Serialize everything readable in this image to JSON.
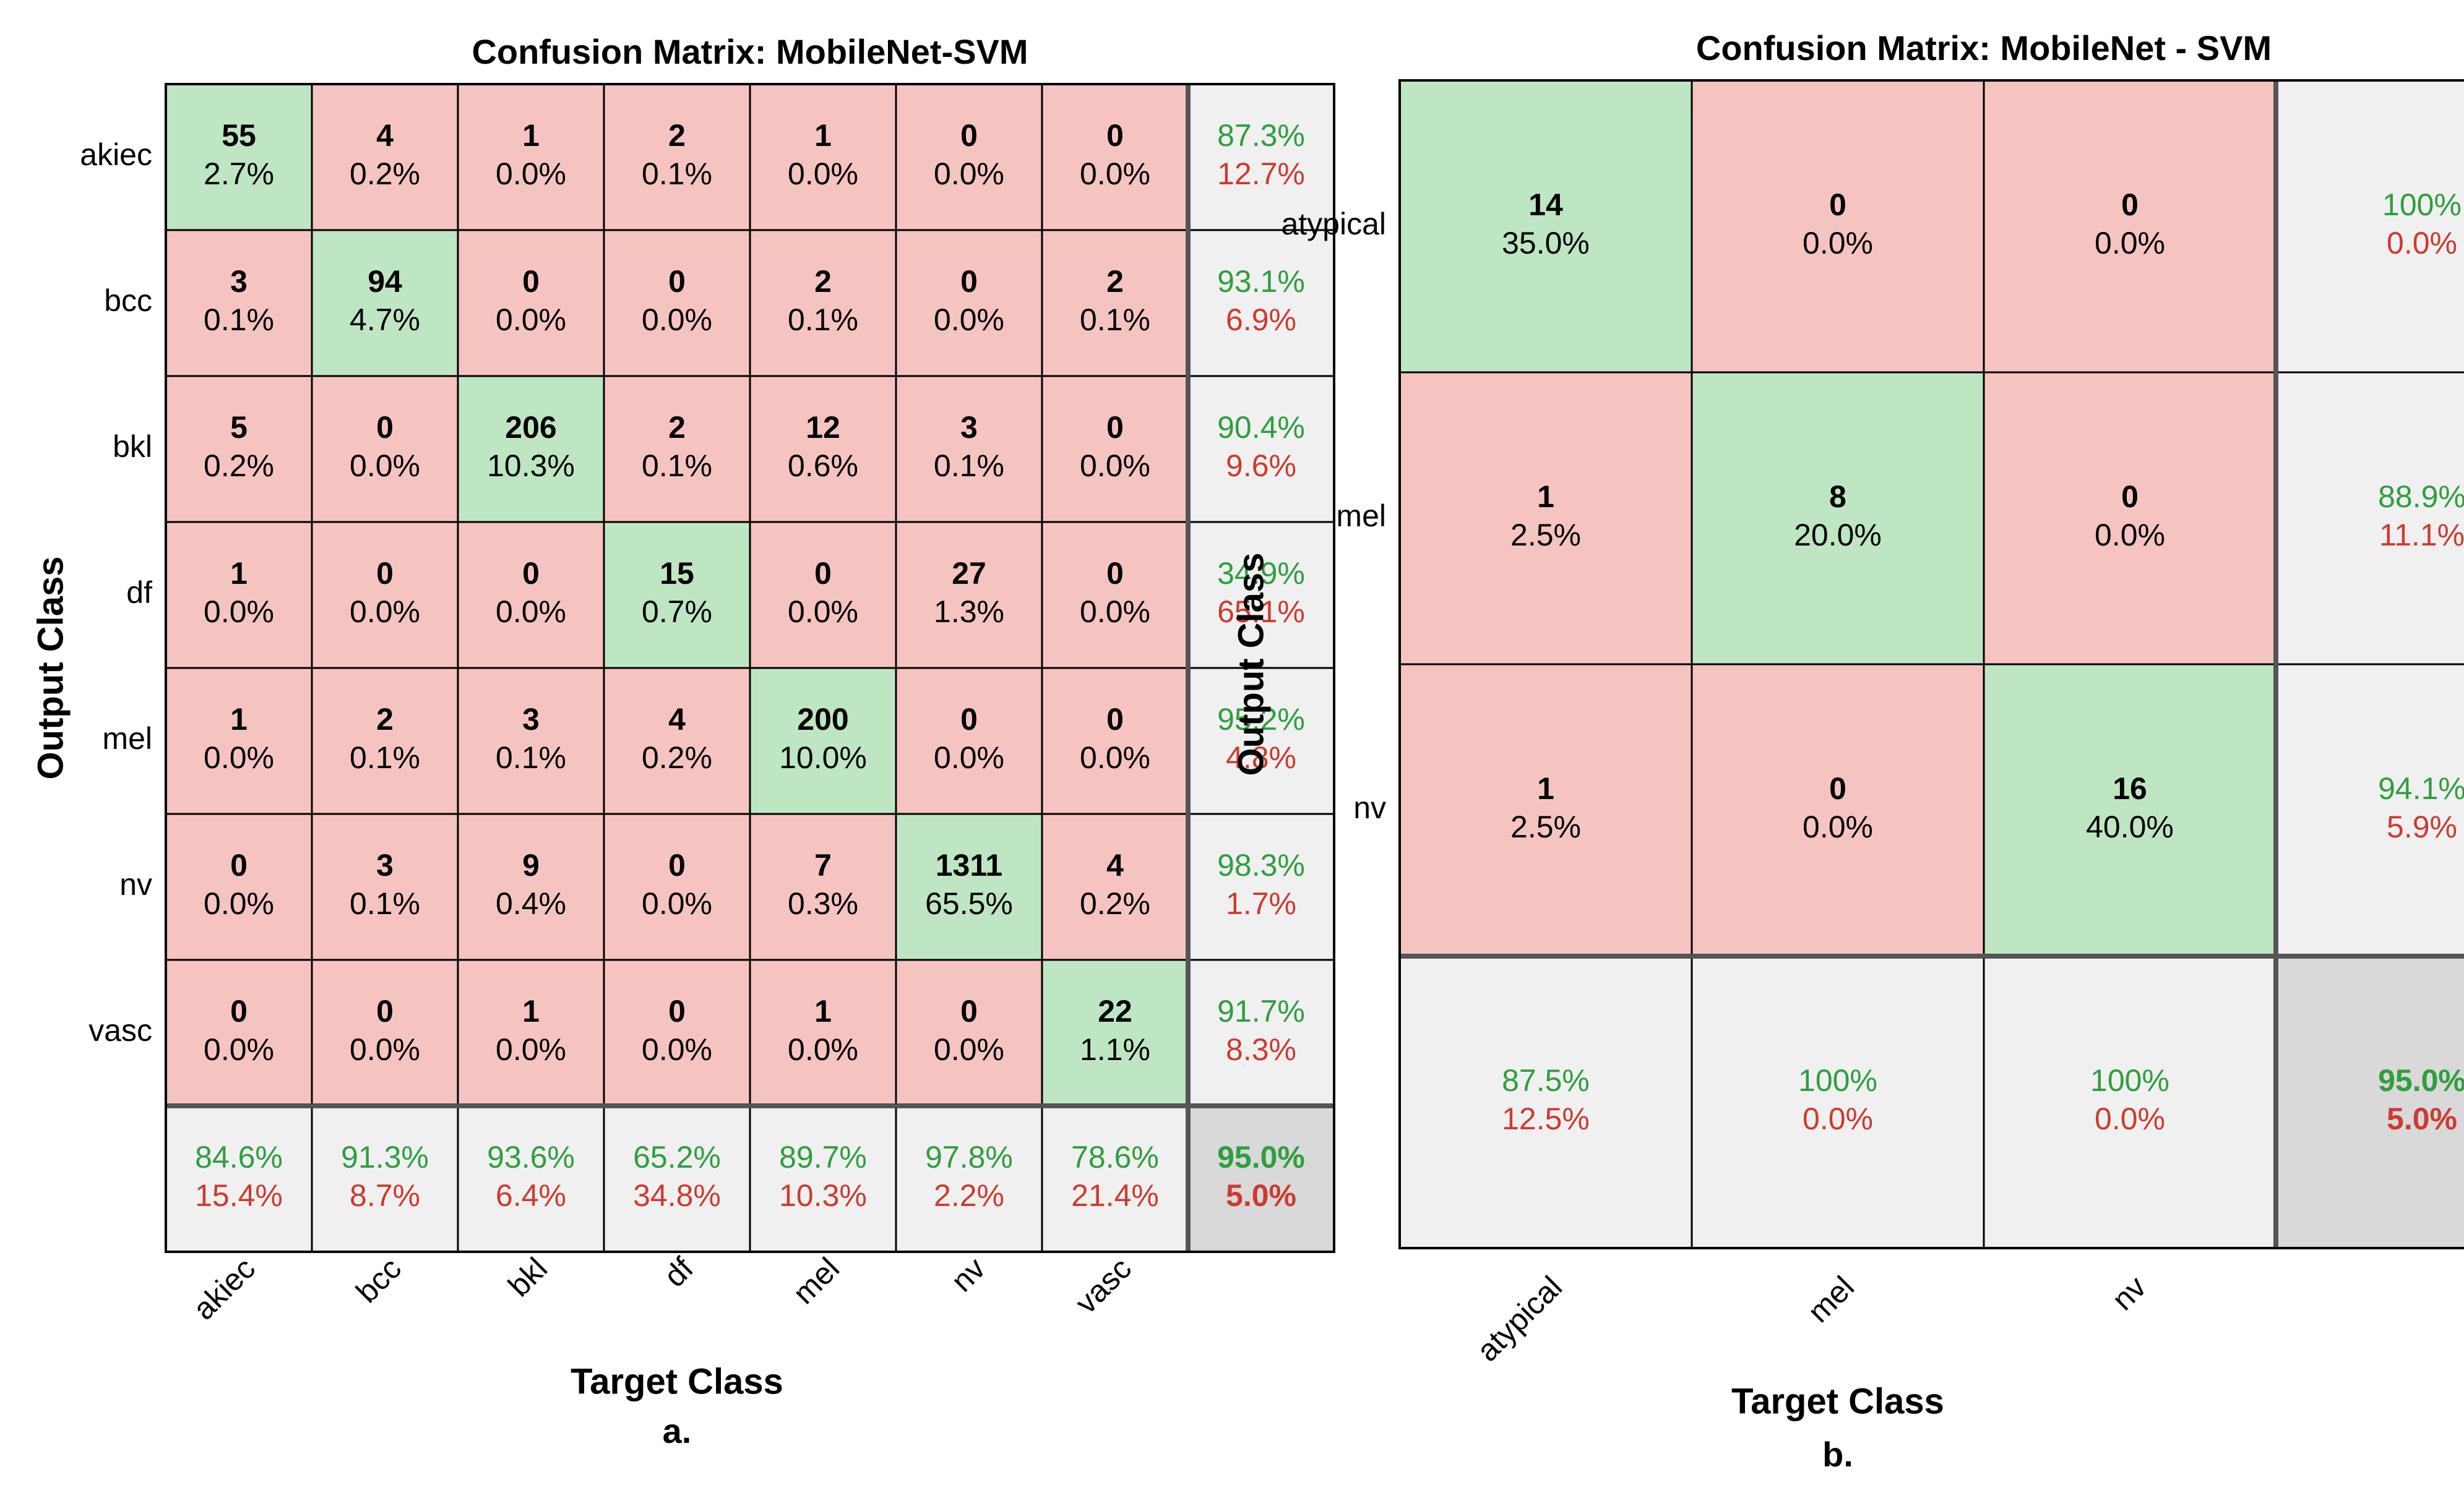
{
  "colors": {
    "correct_cell": "#bfe6c3",
    "error_cell": "#f5c4c1",
    "summary_cell": "#f0f0f0",
    "overall_cell": "#d9d9d9",
    "pct_good_text": "#2f9e3f",
    "pct_bad_text": "#cc3b30",
    "grid_line": "#000000",
    "text": "#000000"
  },
  "chart_data": [
    {
      "type": "heatmap",
      "title": "Confusion Matrix: MobileNet-SVM",
      "xlabel": "Target Class",
      "ylabel": "Output Class",
      "caption": "a.",
      "classes": [
        "akiec",
        "bcc",
        "bkl",
        "df",
        "mel",
        "nv",
        "vasc"
      ],
      "counts": [
        [
          55,
          4,
          1,
          2,
          1,
          0,
          0
        ],
        [
          3,
          94,
          0,
          0,
          2,
          0,
          2
        ],
        [
          5,
          0,
          206,
          2,
          12,
          3,
          0
        ],
        [
          1,
          0,
          0,
          15,
          0,
          27,
          0
        ],
        [
          1,
          2,
          3,
          4,
          200,
          0,
          0
        ],
        [
          0,
          3,
          9,
          0,
          7,
          1311,
          4
        ],
        [
          0,
          0,
          1,
          0,
          1,
          0,
          22
        ]
      ],
      "percents": [
        [
          "2.7%",
          "0.2%",
          "0.0%",
          "0.1%",
          "0.0%",
          "0.0%",
          "0.0%"
        ],
        [
          "0.1%",
          "4.7%",
          "0.0%",
          "0.0%",
          "0.1%",
          "0.0%",
          "0.1%"
        ],
        [
          "0.2%",
          "0.0%",
          "10.3%",
          "0.1%",
          "0.6%",
          "0.1%",
          "0.0%"
        ],
        [
          "0.0%",
          "0.0%",
          "0.0%",
          "0.7%",
          "0.0%",
          "1.3%",
          "0.0%"
        ],
        [
          "0.0%",
          "0.1%",
          "0.1%",
          "0.2%",
          "10.0%",
          "0.0%",
          "0.0%"
        ],
        [
          "0.0%",
          "0.1%",
          "0.4%",
          "0.0%",
          "0.3%",
          "65.5%",
          "0.2%"
        ],
        [
          "0.0%",
          "0.0%",
          "0.0%",
          "0.0%",
          "0.0%",
          "0.0%",
          "1.1%"
        ]
      ],
      "row_summary": [
        [
          "87.3%",
          "12.7%"
        ],
        [
          "93.1%",
          "6.9%"
        ],
        [
          "90.4%",
          "9.6%"
        ],
        [
          "34.9%",
          "65.1%"
        ],
        [
          "95.2%",
          "4.8%"
        ],
        [
          "98.3%",
          "1.7%"
        ],
        [
          "91.7%",
          "8.3%"
        ]
      ],
      "col_summary": [
        [
          "84.6%",
          "15.4%"
        ],
        [
          "91.3%",
          "8.7%"
        ],
        [
          "93.6%",
          "6.4%"
        ],
        [
          "65.2%",
          "34.8%"
        ],
        [
          "89.7%",
          "10.3%"
        ],
        [
          "97.8%",
          "2.2%"
        ],
        [
          "78.6%",
          "21.4%"
        ]
      ],
      "overall": [
        "95.0%",
        "5.0%"
      ]
    },
    {
      "type": "heatmap",
      "title": "Confusion Matrix: MobileNet - SVM",
      "xlabel": "Target Class",
      "ylabel": "Output Class",
      "caption": "b.",
      "classes": [
        "atypical",
        "mel",
        "nv"
      ],
      "counts": [
        [
          14,
          0,
          0
        ],
        [
          1,
          8,
          0
        ],
        [
          1,
          0,
          16
        ]
      ],
      "percents": [
        [
          "35.0%",
          "0.0%",
          "0.0%"
        ],
        [
          "2.5%",
          "20.0%",
          "0.0%"
        ],
        [
          "2.5%",
          "0.0%",
          "40.0%"
        ]
      ],
      "row_summary": [
        [
          "100%",
          "0.0%"
        ],
        [
          "88.9%",
          "11.1%"
        ],
        [
          "94.1%",
          "5.9%"
        ]
      ],
      "col_summary": [
        [
          "87.5%",
          "12.5%"
        ],
        [
          "100%",
          "0.0%"
        ],
        [
          "100%",
          "0.0%"
        ]
      ],
      "overall": [
        "95.0%",
        "5.0%"
      ]
    }
  ]
}
